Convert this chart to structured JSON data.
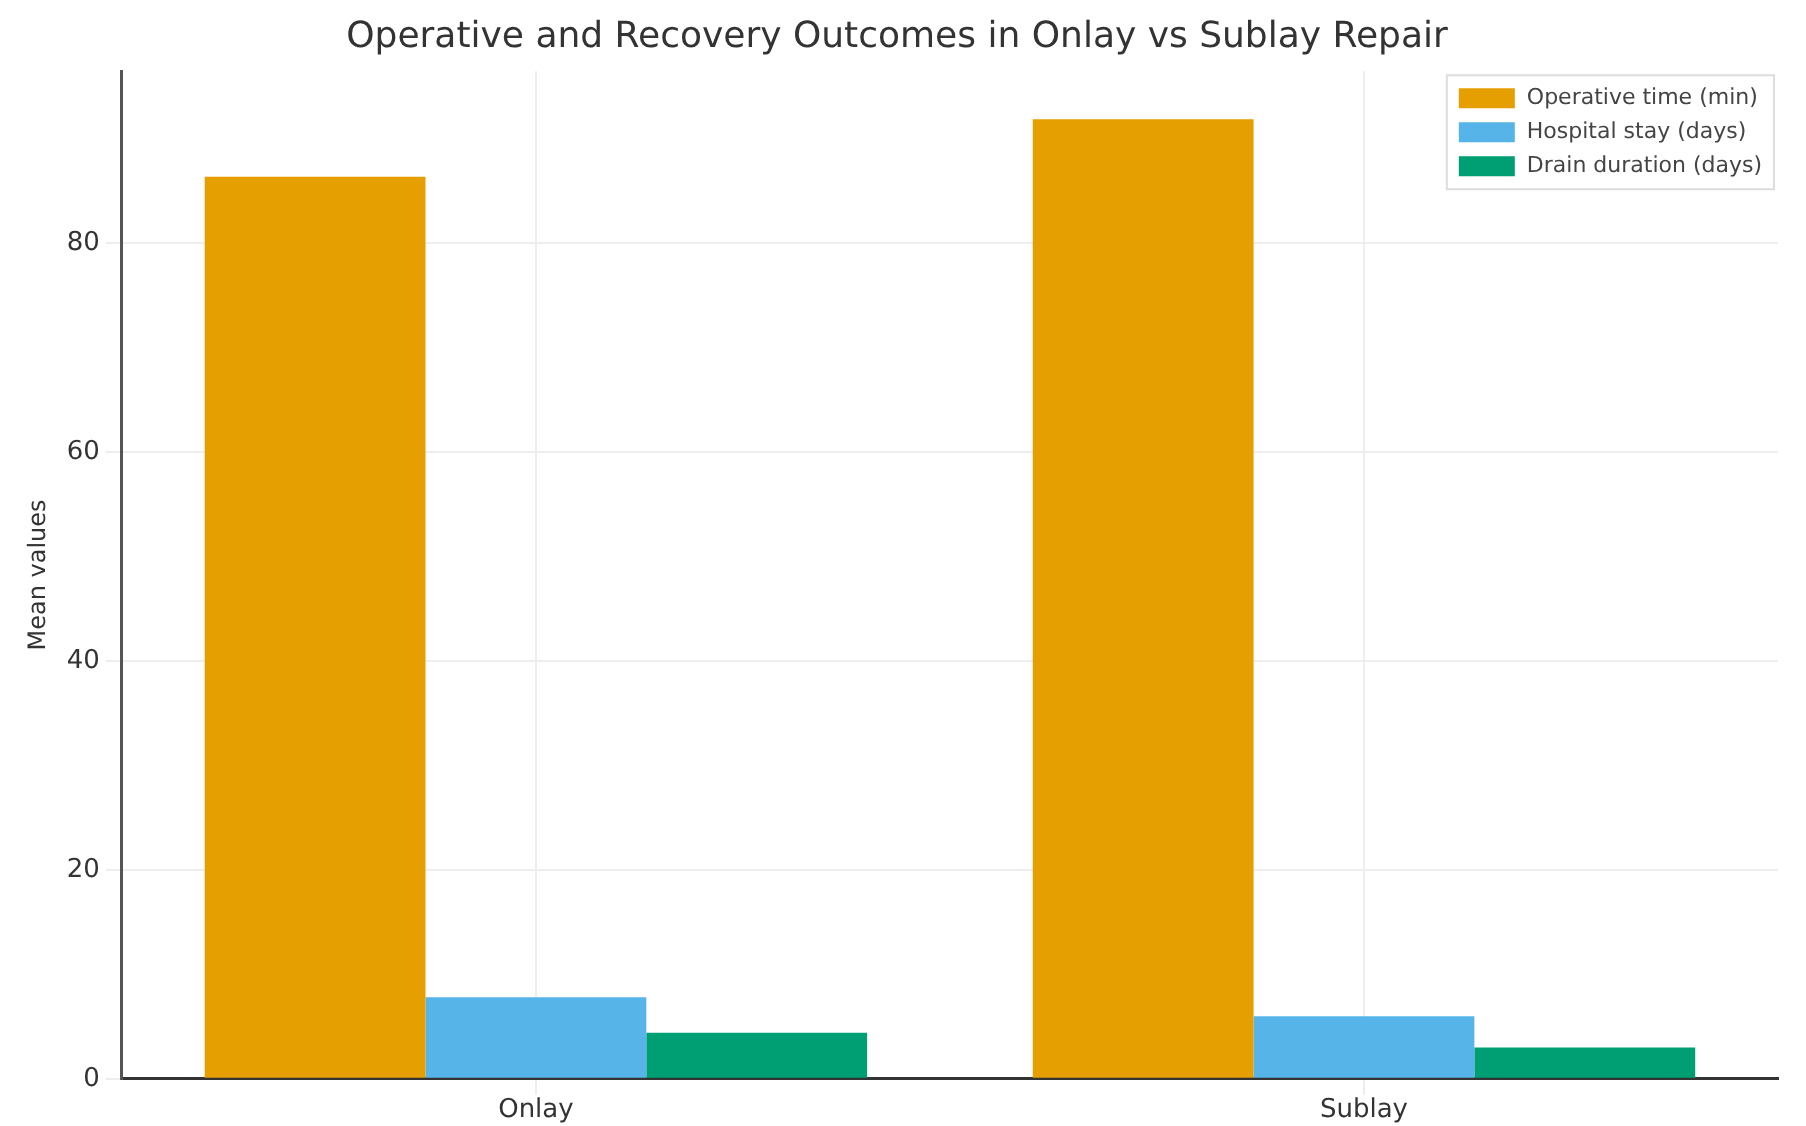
{
  "chart_data": {
    "type": "bar",
    "title": "Operative and Recovery Outcomes in Onlay vs Sublay Repair",
    "ylabel": "Mean values",
    "categories": [
      "Onlay",
      "Sublay"
    ],
    "series": [
      {
        "name": "Operative time (min)",
        "color": "#e69f00",
        "values": [
          86.4,
          91.9
        ]
      },
      {
        "name": "Hospital stay (days)",
        "color": "#56b4e9",
        "values": [
          7.8,
          6.0
        ]
      },
      {
        "name": "Drain duration (days)",
        "color": "#009e73",
        "values": [
          4.4,
          3.0
        ]
      }
    ],
    "ylim": [
      0,
      96.5
    ],
    "yticks": [
      0,
      20,
      40,
      60,
      80
    ],
    "grid": true,
    "legend": "top right"
  }
}
